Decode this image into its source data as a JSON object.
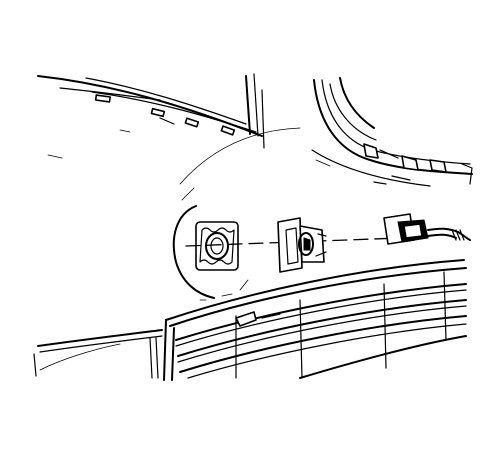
{
  "diagram": {
    "components": [
      "body-panel",
      "fender-corner",
      "panel-opening-grommet",
      "sensor-mounting-bracket",
      "sensor-with-harness",
      "front-grille"
    ],
    "has_text_labels": false
  }
}
